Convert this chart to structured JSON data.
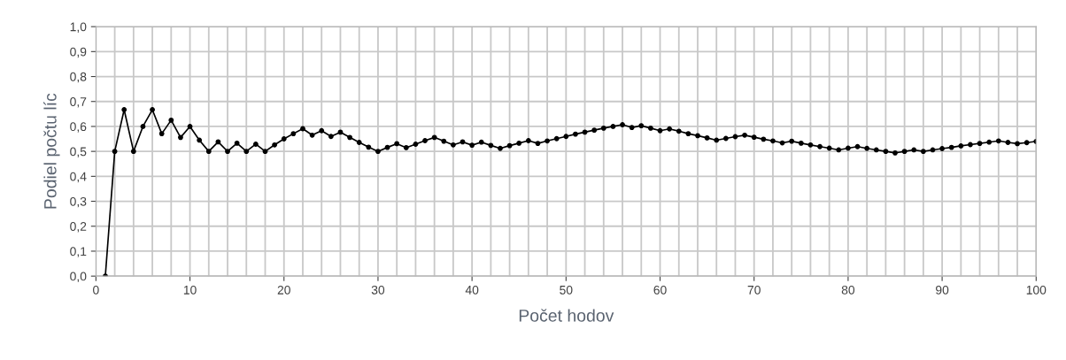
{
  "chart_data": {
    "type": "line",
    "xlabel": "Počet hodov",
    "ylabel": "Podiel počtu líc",
    "x": [
      1,
      2,
      3,
      4,
      5,
      6,
      7,
      8,
      9,
      10,
      11,
      12,
      13,
      14,
      15,
      16,
      17,
      18,
      19,
      20,
      21,
      22,
      23,
      24,
      25,
      26,
      27,
      28,
      29,
      30,
      31,
      32,
      33,
      34,
      35,
      36,
      37,
      38,
      39,
      40,
      41,
      42,
      43,
      44,
      45,
      46,
      47,
      48,
      49,
      50,
      51,
      52,
      53,
      54,
      55,
      56,
      57,
      58,
      59,
      60,
      61,
      62,
      63,
      64,
      65,
      66,
      67,
      68,
      69,
      70,
      71,
      72,
      73,
      74,
      75,
      76,
      77,
      78,
      79,
      80,
      81,
      82,
      83,
      84,
      85,
      86,
      87,
      88,
      89,
      90,
      91,
      92,
      93,
      94,
      95,
      96,
      97,
      98,
      99,
      100
    ],
    "series": [
      {
        "color": "#000000",
        "values": [
          0,
          0.5,
          0.667,
          0.5,
          0.6,
          0.667,
          0.571,
          0.625,
          0.556,
          0.6,
          0.545,
          0.5,
          0.538,
          0.5,
          0.533,
          0.5,
          0.529,
          0.5,
          0.526,
          0.55,
          0.571,
          0.591,
          0.565,
          0.583,
          0.56,
          0.577,
          0.556,
          0.536,
          0.517,
          0.5,
          0.516,
          0.531,
          0.515,
          0.529,
          0.543,
          0.556,
          0.541,
          0.526,
          0.538,
          0.525,
          0.537,
          0.524,
          0.512,
          0.523,
          0.533,
          0.543,
          0.532,
          0.542,
          0.551,
          0.56,
          0.569,
          0.577,
          0.585,
          0.593,
          0.6,
          0.607,
          0.596,
          0.603,
          0.593,
          0.583,
          0.59,
          0.581,
          0.571,
          0.563,
          0.554,
          0.545,
          0.552,
          0.559,
          0.565,
          0.557,
          0.549,
          0.542,
          0.534,
          0.541,
          0.533,
          0.526,
          0.519,
          0.513,
          0.506,
          0.513,
          0.519,
          0.512,
          0.506,
          0.5,
          0.494,
          0.5,
          0.506,
          0.5,
          0.506,
          0.511,
          0.516,
          0.522,
          0.527,
          0.532,
          0.537,
          0.542,
          0.536,
          0.531,
          0.535,
          0.54
        ]
      }
    ],
    "xlim": [
      0,
      100
    ],
    "xticks": [
      0,
      {
        "value": 2,
        "label": null
      },
      {
        "value": 4,
        "label": null
      },
      {
        "value": 6,
        "label": null
      },
      {
        "value": 8,
        "label": null
      },
      10,
      {
        "value": 12,
        "label": null
      },
      {
        "value": 14,
        "label": null
      },
      {
        "value": 16,
        "label": null
      },
      {
        "value": 18,
        "label": null
      },
      20,
      {
        "value": 22,
        "label": null
      },
      {
        "value": 24,
        "label": null
      },
      {
        "value": 26,
        "label": null
      },
      {
        "value": 28,
        "label": null
      },
      30,
      {
        "value": 32,
        "label": null
      },
      {
        "value": 34,
        "label": null
      },
      {
        "value": 36,
        "label": null
      },
      {
        "value": 38,
        "label": null
      },
      40,
      {
        "value": 42,
        "label": null
      },
      {
        "value": 44,
        "label": null
      },
      {
        "value": 46,
        "label": null
      },
      {
        "value": 48,
        "label": null
      },
      50,
      {
        "value": 52,
        "label": null
      },
      {
        "value": 54,
        "label": null
      },
      {
        "value": 56,
        "label": null
      },
      {
        "value": 58,
        "label": null
      },
      60,
      {
        "value": 62,
        "label": null
      },
      {
        "value": 64,
        "label": null
      },
      {
        "value": 66,
        "label": null
      },
      {
        "value": 68,
        "label": null
      },
      70,
      {
        "value": 72,
        "label": null
      },
      {
        "value": 74,
        "label": null
      },
      {
        "value": 76,
        "label": null
      },
      {
        "value": 78,
        "label": null
      },
      80,
      {
        "value": 82,
        "label": null
      },
      {
        "value": 84,
        "label": null
      },
      {
        "value": 86,
        "label": null
      },
      {
        "value": 88,
        "label": null
      },
      90,
      {
        "value": 92,
        "label": null
      },
      {
        "value": 94,
        "label": null
      },
      {
        "value": 96,
        "label": null
      },
      {
        "value": 98,
        "label": null
      },
      100
    ],
    "ylim": [
      0,
      1
    ],
    "yticks": [
      {
        "value": 0,
        "label": "0,0"
      },
      {
        "value": 0.1,
        "label": "0,1"
      },
      {
        "value": 0.2,
        "label": "0,2"
      },
      {
        "value": 0.3,
        "label": "0,3"
      },
      {
        "value": 0.4,
        "label": "0,4"
      },
      {
        "value": 0.5,
        "label": "0,5"
      },
      {
        "value": 0.6,
        "label": "0,6"
      },
      {
        "value": 0.7,
        "label": "0,7"
      },
      {
        "value": 0.8,
        "label": "0,8"
      },
      {
        "value": 0.9,
        "label": "0,9"
      },
      {
        "value": 1,
        "label": "1,0"
      }
    ],
    "grid": true,
    "marker": "circle",
    "line_style": "solid",
    "legend": false
  }
}
